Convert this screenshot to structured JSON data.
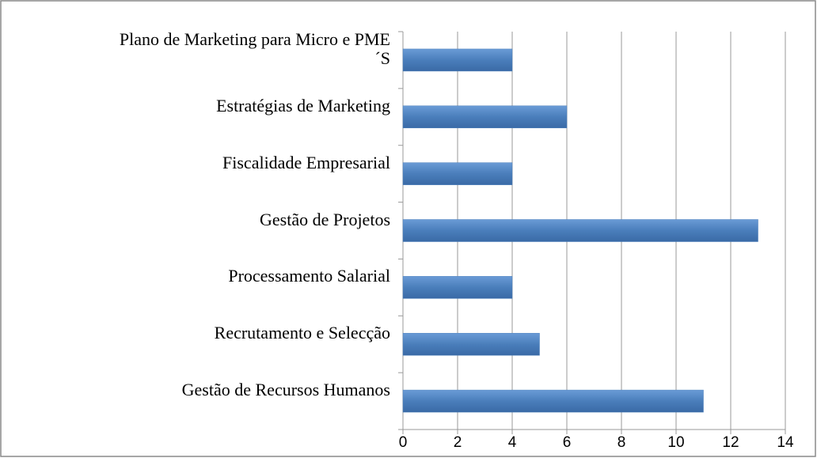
{
  "chart_data": {
    "type": "bar",
    "orientation": "horizontal",
    "categories": [
      "Plano de Marketing para Micro e PME\n´S",
      "Estratégias de Marketing",
      "Fiscalidade Empresarial",
      "Gestão de Projetos",
      "Processamento Salarial",
      "Recrutamento e Selecção",
      "Gestão de Recursos Humanos"
    ],
    "values": [
      4,
      6,
      4,
      13,
      4,
      5,
      11
    ],
    "color": "#4a7ebb",
    "xlim": [
      0,
      14
    ],
    "xticks": [
      0,
      2,
      4,
      6,
      8,
      10,
      12,
      14
    ],
    "grid": true
  }
}
